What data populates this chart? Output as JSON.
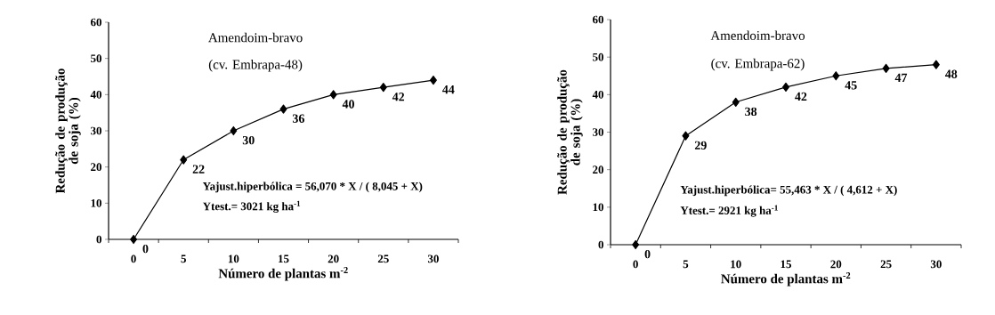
{
  "chart_data": [
    {
      "type": "line",
      "title": "Amendoim-bravo",
      "subtitle": "(cv. Embrapa-48)",
      "xlabel": "Número de plantas m$^{-2}$",
      "ylabel": "Redução de produção de soja (%)",
      "categories": [
        "0",
        "5",
        "10",
        "15",
        "20",
        "25",
        "30"
      ],
      "series": [
        {
          "color": "#000000",
          "values": [
            0,
            22,
            30,
            36,
            40,
            42,
            44
          ]
        }
      ],
      "ylim": [
        0,
        60
      ],
      "yticks": [
        0,
        10,
        20,
        30,
        40,
        50,
        60
      ],
      "marker": "diamond",
      "data_labels": true,
      "annotations": [
        "Yajust.hiperbólica = 56,070 * X / ( 8,045 + X)",
        "Ytest.= 3021 kg ha$^{-1}$"
      ]
    },
    {
      "type": "line",
      "title": "Amendoim-bravo",
      "subtitle": "(cv. Embrapa-62)",
      "xlabel": "Número de plantas m$^{-2}$",
      "ylabel": "Redução de produção de soja (%)",
      "categories": [
        "0",
        "5",
        "10",
        "15",
        "20",
        "25",
        "30"
      ],
      "series": [
        {
          "color": "#000000",
          "values": [
            0,
            29,
            38,
            42,
            45,
            47,
            48
          ]
        }
      ],
      "ylim": [
        0,
        60
      ],
      "yticks": [
        0,
        10,
        20,
        30,
        40,
        50,
        60
      ],
      "marker": "diamond",
      "data_labels": true,
      "annotations": [
        "Yajust.hiperbólica= 55,463 * X / ( 4,612 + X)",
        "Ytest.= 2921 kg ha$^{-1}$"
      ]
    }
  ]
}
